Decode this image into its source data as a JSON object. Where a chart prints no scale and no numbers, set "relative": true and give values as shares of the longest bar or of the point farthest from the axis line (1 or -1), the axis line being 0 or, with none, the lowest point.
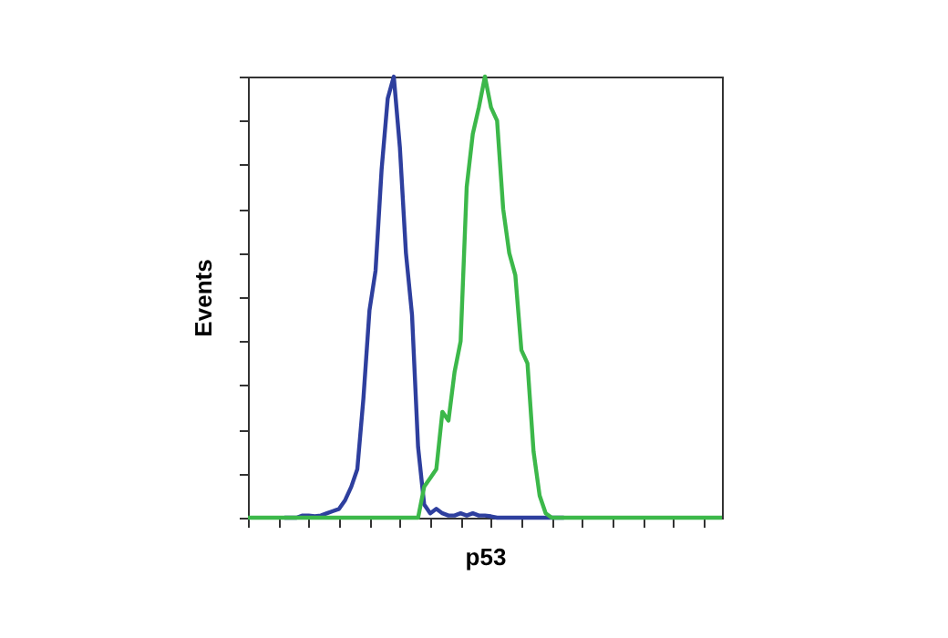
{
  "chart_data": {
    "type": "line",
    "relative": true,
    "xlabel": "p53",
    "ylabel": "Events",
    "tick_labels": false,
    "grid": false,
    "legend": false,
    "categories": [
      null,
      null,
      null,
      null,
      null,
      null,
      null,
      null,
      null,
      null,
      null,
      null,
      null,
      null,
      null,
      null,
      null,
      null,
      null,
      null,
      null,
      null,
      null,
      null,
      null,
      null,
      null,
      null,
      null,
      null,
      null,
      null,
      null,
      null,
      null,
      null,
      null,
      null,
      null,
      null,
      null,
      null,
      null,
      null,
      null,
      null,
      null,
      null,
      null,
      null,
      null,
      null,
      null,
      null,
      null,
      null,
      null,
      null,
      null,
      null,
      null,
      null,
      null,
      null,
      null,
      null,
      null,
      null,
      null,
      null,
      null,
      null,
      null,
      null,
      null,
      null,
      null,
      null,
      null
    ],
    "series": [
      {
        "color": "#2e3f9e",
        "values": [
          null,
          null,
          null,
          null,
          null,
          null,
          0,
          0,
          0,
          0.005,
          0.005,
          0.003,
          0.005,
          0.01,
          0.015,
          0.02,
          0.04,
          0.07,
          0.11,
          0.27,
          0.47,
          0.56,
          0.79,
          0.95,
          1.0,
          0.84,
          0.6,
          0.46,
          0.16,
          0.03,
          0.01,
          0.02,
          0.01,
          0.005,
          0.005,
          0.01,
          0.005,
          0.01,
          0.005,
          0.005,
          0.003,
          0,
          0,
          0,
          0,
          0,
          0,
          0,
          0,
          0,
          0,
          0,
          0,
          null,
          null,
          null,
          null,
          null,
          null,
          null,
          null,
          null,
          null,
          null,
          null,
          null,
          null,
          null,
          null,
          null,
          null,
          null,
          null,
          null,
          null,
          null,
          null,
          null,
          null
        ]
      },
      {
        "color": "#3cb84a",
        "values": [
          0,
          0,
          0,
          0,
          0,
          0,
          0,
          0,
          0,
          0,
          0,
          0,
          0,
          0,
          0,
          0,
          0,
          0,
          0,
          0,
          0,
          0,
          0,
          0,
          0,
          0,
          0,
          0,
          0,
          0.07,
          0.09,
          0.11,
          0.24,
          0.22,
          0.33,
          0.4,
          0.75,
          0.87,
          0.93,
          1.0,
          0.93,
          0.9,
          0.7,
          0.6,
          0.55,
          0.38,
          0.35,
          0.15,
          0.05,
          0.01,
          0,
          0,
          0,
          0,
          0,
          0,
          0,
          0,
          0,
          0,
          0,
          0,
          0,
          0,
          0,
          0,
          0,
          0,
          0,
          0,
          0,
          0,
          0,
          0,
          0,
          0,
          0,
          0,
          0
        ]
      }
    ]
  }
}
